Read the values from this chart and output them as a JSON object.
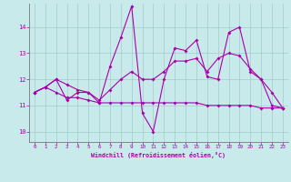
{
  "xlabel": "Windchill (Refroidissement éolien,°C)",
  "bg_color": "#c8eaea",
  "line_color": "#aa00aa",
  "grid_color": "#a0cccc",
  "xlim": [
    -0.5,
    23.5
  ],
  "ylim": [
    9.6,
    14.9
  ],
  "xticks": [
    0,
    1,
    2,
    3,
    4,
    5,
    6,
    7,
    8,
    9,
    10,
    11,
    12,
    13,
    14,
    15,
    16,
    17,
    18,
    19,
    20,
    21,
    22,
    23
  ],
  "yticks": [
    10,
    11,
    12,
    13,
    14
  ],
  "series": [
    {
      "x": [
        0,
        1,
        2,
        3,
        4,
        5,
        6,
        7,
        8,
        9,
        10,
        11,
        12,
        13,
        14,
        15,
        16,
        17,
        18,
        19,
        20,
        21,
        22,
        23
      ],
      "y": [
        11.5,
        11.7,
        12.0,
        11.2,
        11.5,
        11.5,
        11.1,
        12.5,
        13.6,
        14.8,
        10.7,
        10.0,
        12.0,
        13.2,
        13.1,
        13.5,
        12.1,
        12.0,
        13.8,
        14.0,
        12.3,
        12.0,
        11.0,
        10.9
      ]
    },
    {
      "x": [
        0,
        1,
        2,
        3,
        4,
        5,
        6,
        7,
        8,
        9,
        10,
        11,
        12,
        13,
        14,
        15,
        16,
        17,
        18,
        19,
        20,
        21,
        22,
        23
      ],
      "y": [
        11.5,
        11.7,
        11.5,
        11.3,
        11.3,
        11.2,
        11.1,
        11.1,
        11.1,
        11.1,
        11.1,
        11.1,
        11.1,
        11.1,
        11.1,
        11.1,
        11.0,
        11.0,
        11.0,
        11.0,
        11.0,
        10.9,
        10.9,
        10.9
      ]
    },
    {
      "x": [
        0,
        1,
        2,
        3,
        4,
        5,
        6,
        7,
        8,
        9,
        10,
        11,
        12,
        13,
        14,
        15,
        16,
        17,
        18,
        19,
        20,
        21,
        22,
        23
      ],
      "y": [
        11.5,
        11.7,
        12.0,
        11.8,
        11.6,
        11.5,
        11.2,
        11.6,
        12.0,
        12.3,
        12.0,
        12.0,
        12.3,
        12.7,
        12.7,
        12.8,
        12.3,
        12.8,
        13.0,
        12.9,
        12.4,
        12.0,
        11.5,
        10.9
      ]
    }
  ]
}
